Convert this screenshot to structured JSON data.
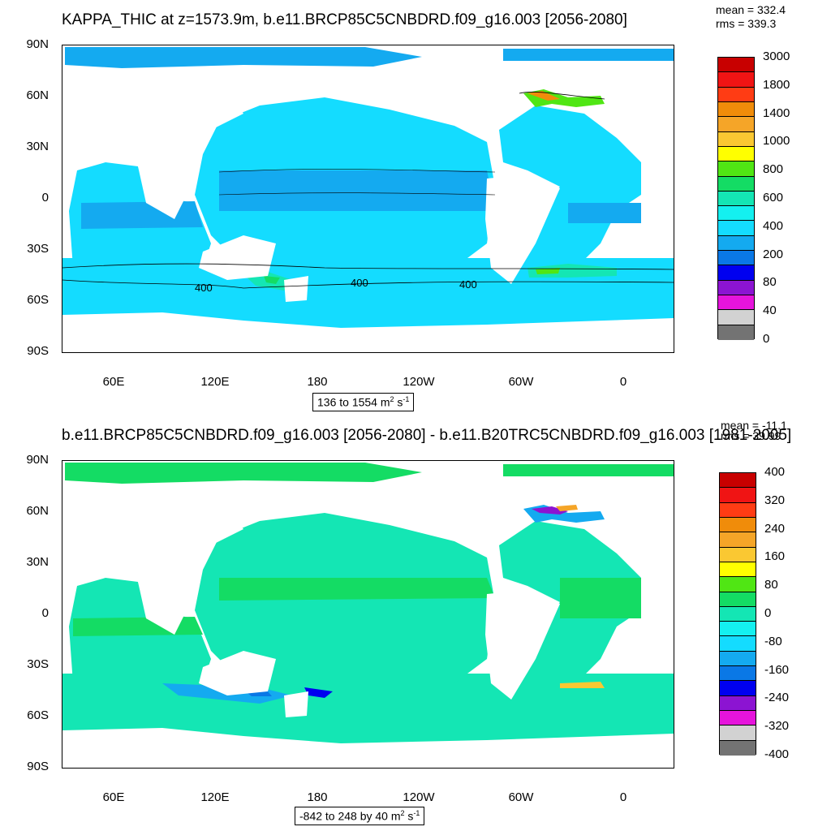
{
  "top": {
    "title": "KAPPA_THIC at z=1573.9m, b.e11.BRCP85C5CNBDRD.f09_g16.003 [2056-2080]",
    "stats": {
      "mean": "mean = 332.4",
      "rms": "rms = 339.3"
    },
    "yticks": [
      "90N",
      "60N",
      "30N",
      "0",
      "30S",
      "60S",
      "90S"
    ],
    "xticks": [
      "60E",
      "120E",
      "180",
      "120W",
      "60W",
      "0"
    ],
    "range_label": "136 to 1554 m",
    "contour_labels": [
      "400",
      "400",
      "400"
    ],
    "colorbar": {
      "labels": [
        "3000",
        "1800",
        "1400",
        "1000",
        "800",
        "600",
        "400",
        "200",
        "80",
        "40",
        "0"
      ],
      "colors": [
        "#c80000",
        "#f01414",
        "#ff3c14",
        "#f08c0a",
        "#f5a528",
        "#fac832",
        "#ffff00",
        "#50e614",
        "#14dc64",
        "#14e6b4",
        "#14f0f0",
        "#14dcff",
        "#14aaf0",
        "#0a78e6",
        "#0000f0",
        "#8c14d2",
        "#e614dc",
        "#d2d2d2",
        "#737373"
      ]
    }
  },
  "bottom": {
    "title": "b.e11.BRCP85C5CNBDRD.f09_g16.003 [2056-2080] - b.e11.B20TRC5CNBDRD.f09_g16.003 [1981-2005]",
    "stats": {
      "mean": "mean = -11.1",
      "rms": "rms = 39.99"
    },
    "yticks": [
      "90N",
      "60N",
      "30N",
      "0",
      "30S",
      "60S",
      "90S"
    ],
    "xticks": [
      "60E",
      "120E",
      "180",
      "120W",
      "60W",
      "0"
    ],
    "range_label": "-842 to 248 by 40 m",
    "colorbar": {
      "labels": [
        "400",
        "320",
        "240",
        "160",
        "80",
        "0",
        "-80",
        "-160",
        "-240",
        "-320",
        "-400"
      ],
      "colors": [
        "#c80000",
        "#f01414",
        "#ff3c14",
        "#f08c0a",
        "#f5a528",
        "#fac832",
        "#ffff00",
        "#50e614",
        "#14dc64",
        "#14e6b4",
        "#14f0f0",
        "#14dcff",
        "#14aaf0",
        "#0a78e6",
        "#0000f0",
        "#8c14d2",
        "#e614dc",
        "#d2d2d2",
        "#737373"
      ]
    }
  },
  "units": {
    "m2": "2",
    "s": " s",
    "sm1": "-1"
  }
}
